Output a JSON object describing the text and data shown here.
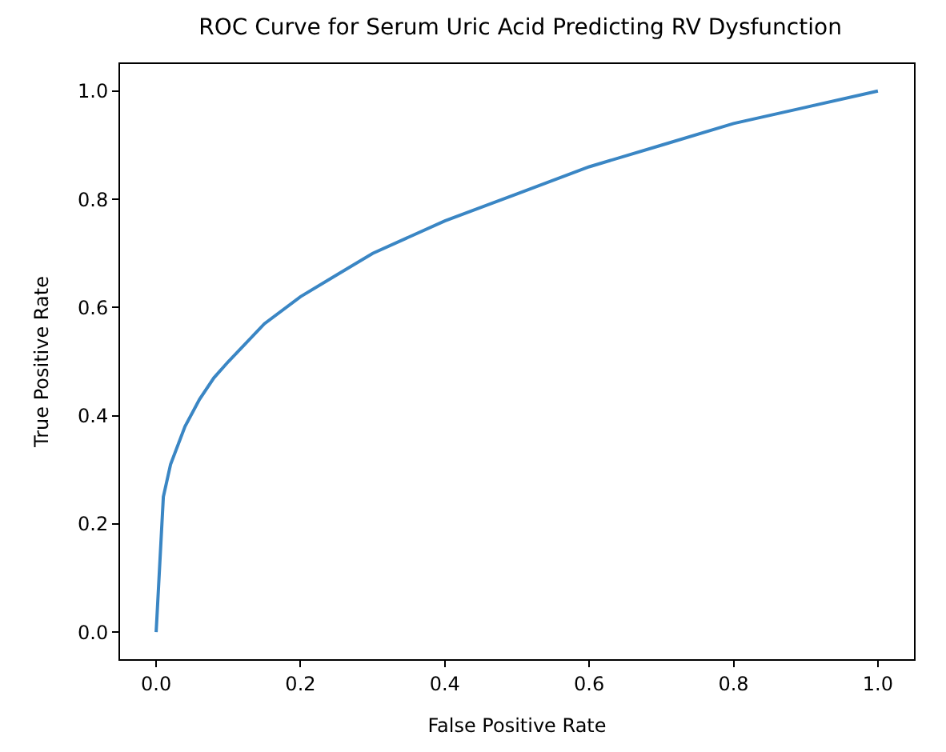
{
  "chart_data": {
    "type": "line",
    "title": "ROC Curve for Serum Uric Acid Predicting RV Dysfunction",
    "xlabel": "False Positive Rate",
    "ylabel": "True Positive Rate",
    "x": [
      0,
      0.01,
      0.02,
      0.04,
      0.06,
      0.08,
      0.1,
      0.15,
      0.2,
      0.25,
      0.3,
      0.4,
      0.5,
      0.6,
      0.7,
      0.8,
      0.9,
      1.0
    ],
    "series": [
      {
        "color": "#3a86c4",
        "values": [
          0,
          0.25,
          0.31,
          0.38,
          0.43,
          0.47,
          0.5,
          0.57,
          0.62,
          0.66,
          0.7,
          0.76,
          0.81,
          0.86,
          0.9,
          0.94,
          0.97,
          1.0
        ]
      }
    ],
    "xlim": [
      -0.05,
      1.05
    ],
    "ylim": [
      -0.05,
      1.05
    ],
    "xticks": [
      {
        "value": 0,
        "label": "0.0"
      },
      0.2,
      0.4,
      0.6,
      0.8,
      {
        "value": 1,
        "label": "1.0"
      }
    ],
    "yticks": [
      {
        "value": 0,
        "label": "0.0"
      },
      0.2,
      0.4,
      0.6,
      0.8,
      {
        "value": 1,
        "label": "1.0"
      }
    ],
    "line_style": "solid"
  }
}
